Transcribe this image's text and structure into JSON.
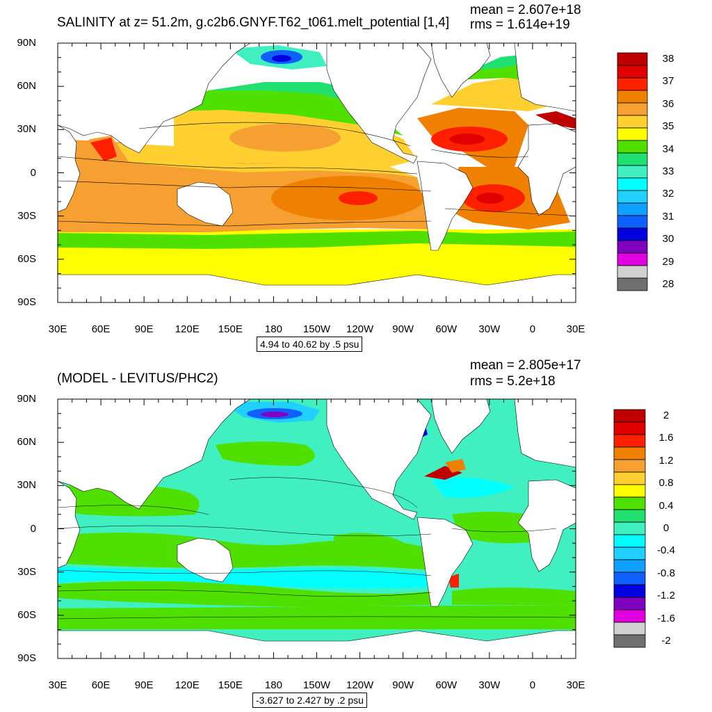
{
  "top": {
    "title": "SALINITY at z=  51.2m, g.c2b6.GNYF.T62_t061.melt_potential [1,4]",
    "mean": "mean = 2.607e+18",
    "rms": "rms = 1.614e+19",
    "range": "4.94 to 40.62 by .5 psu",
    "colorbar": {
      "labels": [
        "38",
        "37",
        "36",
        "35",
        "34",
        "33",
        "32",
        "31",
        "30",
        "29",
        "28"
      ],
      "colors": [
        "#c00000",
        "#e00000",
        "#ff2000",
        "#f08000",
        "#f5a030",
        "#ffd030",
        "#ffff00",
        "#50e000",
        "#20e070",
        "#40f0c0",
        "#00ffff",
        "#20d0ff",
        "#10a0ff",
        "#1060ff",
        "#0000e0",
        "#8000c0",
        "#e000e0",
        "#d0d0d0",
        "#707070"
      ]
    }
  },
  "bottom": {
    "title": "(MODEL - LEVITUS/PHC2)",
    "mean": "mean = 2.805e+17",
    "rms": "rms = 5.2e+18",
    "range": "-3.627 to 2.427 by .2 psu",
    "colorbar": {
      "labels": [
        "2",
        "1.6",
        "1.2",
        "0.8",
        "0.4",
        "0",
        "-0.4",
        "-0.8",
        "-1.2",
        "-1.6",
        "-2"
      ],
      "colors": [
        "#c00000",
        "#e00000",
        "#ff2000",
        "#f08000",
        "#f5a030",
        "#ffd030",
        "#ffff00",
        "#50e000",
        "#20e070",
        "#40f0c0",
        "#00ffff",
        "#20d0ff",
        "#10a0ff",
        "#1060ff",
        "#0000e0",
        "#8000c0",
        "#e000e0",
        "#d0d0d0",
        "#707070"
      ]
    }
  },
  "lat_labels": [
    "90N",
    "60N",
    "30N",
    "0",
    "30S",
    "60S",
    "90S"
  ],
  "lon_labels": [
    "30E",
    "60E",
    "90E",
    "120E",
    "150E",
    "180",
    "150W",
    "120W",
    "90W",
    "60W",
    "30W",
    "0",
    "30E"
  ]
}
